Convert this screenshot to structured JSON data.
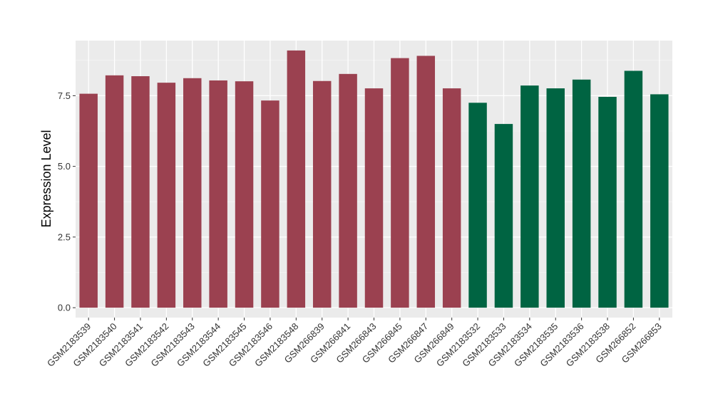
{
  "chart_data": {
    "type": "bar",
    "title": "",
    "xlabel": "",
    "ylabel": "Expression Level",
    "ylim": [
      -0.35,
      9.45
    ],
    "yticks": [
      0.0,
      2.5,
      5.0,
      7.5
    ],
    "ytick_labels": [
      "0.0",
      "2.5",
      "5.0",
      "7.5"
    ],
    "grid": true,
    "legend": "none",
    "colors": {
      "group_a": "#9b4150",
      "group_b": "#006442",
      "panel_bg": "#ebebeb",
      "grid_major": "#ffffff"
    },
    "categories": [
      "GSM2183539",
      "GSM2183540",
      "GSM2183541",
      "GSM2183542",
      "GSM2183543",
      "GSM2183544",
      "GSM2183545",
      "GSM2183546",
      "GSM2183548",
      "GSM266839",
      "GSM266841",
      "GSM266843",
      "GSM266845",
      "GSM266847",
      "GSM266849",
      "GSM2183532",
      "GSM2183533",
      "GSM2183534",
      "GSM2183535",
      "GSM2183536",
      "GSM2183538",
      "GSM266852",
      "GSM266853"
    ],
    "values": [
      7.57,
      8.22,
      8.19,
      7.96,
      8.12,
      8.04,
      8.01,
      7.33,
      9.1,
      8.02,
      8.27,
      7.76,
      8.83,
      8.91,
      7.76,
      7.25,
      6.5,
      7.86,
      7.76,
      8.07,
      7.46,
      8.38,
      7.55
    ],
    "groups": [
      "group_a",
      "group_a",
      "group_a",
      "group_a",
      "group_a",
      "group_a",
      "group_a",
      "group_a",
      "group_a",
      "group_a",
      "group_a",
      "group_a",
      "group_a",
      "group_a",
      "group_a",
      "group_b",
      "group_b",
      "group_b",
      "group_b",
      "group_b",
      "group_b",
      "group_b",
      "group_b"
    ]
  }
}
